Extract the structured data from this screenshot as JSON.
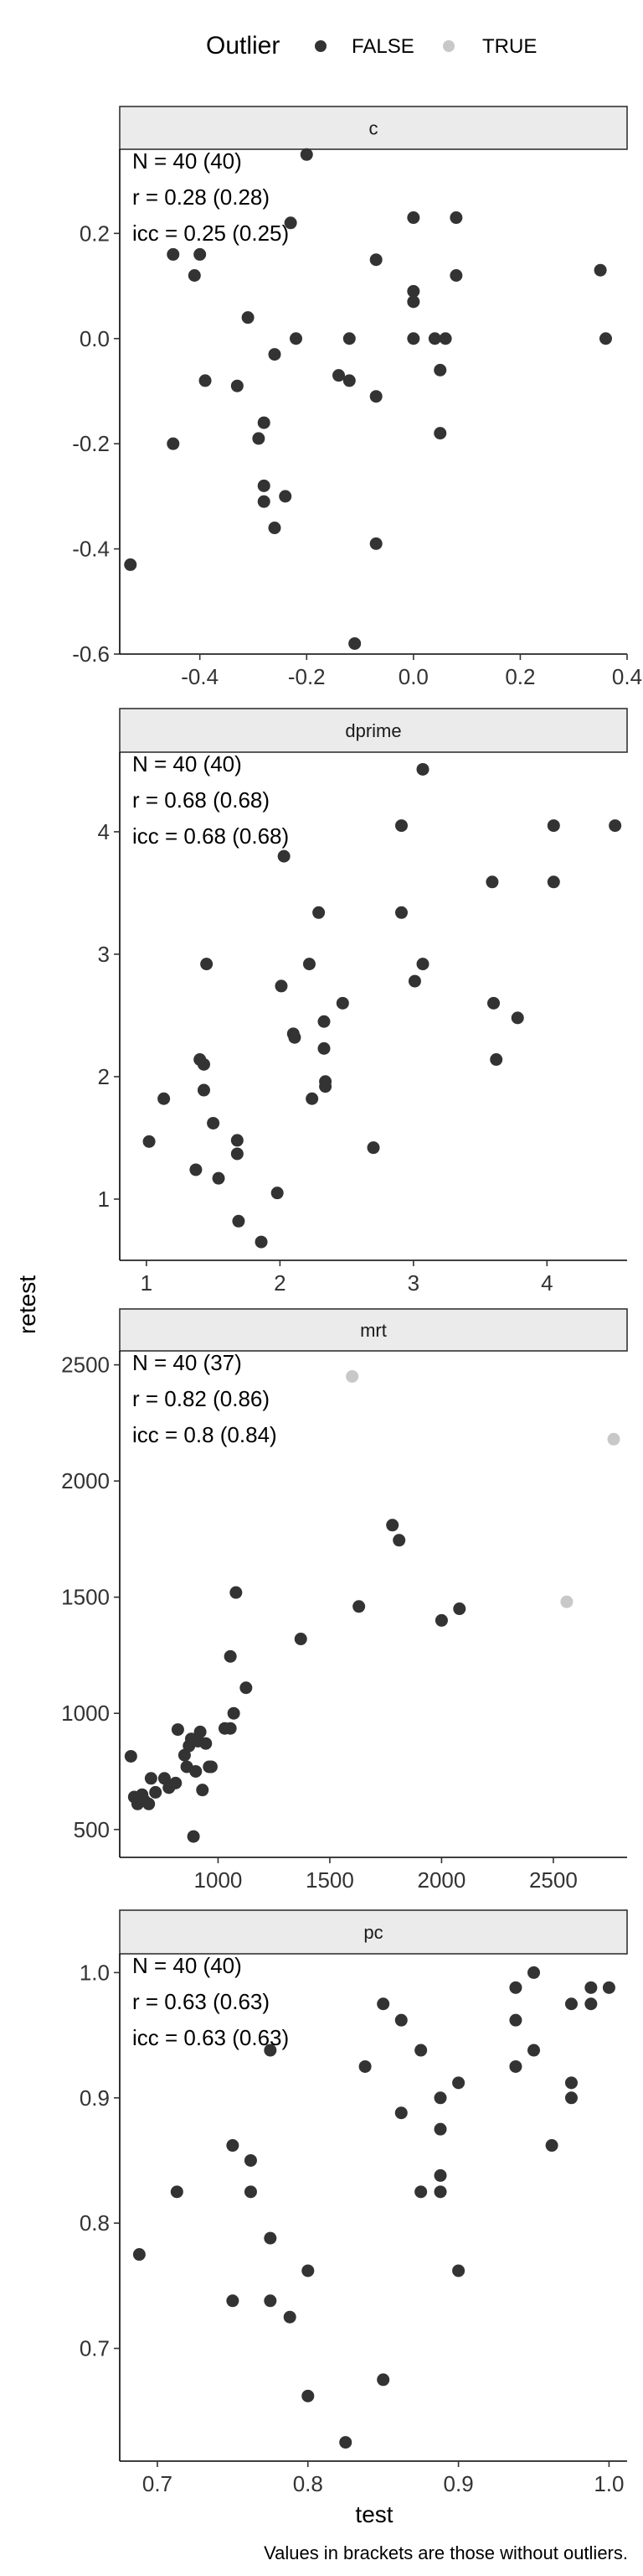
{
  "legend": {
    "title": "Outlier",
    "items": [
      {
        "label": "FALSE",
        "color": "#333333"
      },
      {
        "label": "TRUE",
        "color": "#c8c8c8"
      }
    ]
  },
  "axes": {
    "xlabel": "test",
    "ylabel": "retest"
  },
  "caption": "Values in brackets are those without outliers.",
  "chart_data": [
    {
      "type": "scatter",
      "panel": "c",
      "stats": [
        "N = 40 (40)",
        "r = 0.28 (0.28)",
        "icc = 0.25 (0.25)"
      ],
      "xlim": [
        -0.55,
        0.4
      ],
      "ylim": [
        -0.6,
        0.36
      ],
      "x_ticks": [
        -0.4,
        -0.2,
        0.0,
        0.2,
        0.4
      ],
      "x_tick_labels": [
        "-0.4",
        "-0.2",
        "0.0",
        "0.2",
        "0.4"
      ],
      "y_ticks": [
        -0.6,
        -0.4,
        -0.2,
        0.0,
        0.2
      ],
      "y_tick_labels": [
        "-0.6",
        "-0.4",
        "-0.2",
        "0.0",
        "0.2"
      ],
      "points": [
        {
          "x": -0.53,
          "y": -0.43,
          "outlier": false
        },
        {
          "x": -0.45,
          "y": 0.16,
          "outlier": false
        },
        {
          "x": -0.45,
          "y": -0.2,
          "outlier": false
        },
        {
          "x": -0.41,
          "y": 0.12,
          "outlier": false
        },
        {
          "x": -0.4,
          "y": 0.16,
          "outlier": false
        },
        {
          "x": -0.39,
          "y": -0.08,
          "outlier": false
        },
        {
          "x": -0.33,
          "y": -0.09,
          "outlier": false
        },
        {
          "x": -0.31,
          "y": 0.04,
          "outlier": false
        },
        {
          "x": -0.29,
          "y": -0.19,
          "outlier": false
        },
        {
          "x": -0.28,
          "y": -0.16,
          "outlier": false
        },
        {
          "x": -0.28,
          "y": -0.28,
          "outlier": false
        },
        {
          "x": -0.28,
          "y": -0.31,
          "outlier": false
        },
        {
          "x": -0.26,
          "y": -0.36,
          "outlier": false
        },
        {
          "x": -0.26,
          "y": -0.03,
          "outlier": false
        },
        {
          "x": -0.24,
          "y": -0.3,
          "outlier": false
        },
        {
          "x": -0.23,
          "y": 0.22,
          "outlier": false
        },
        {
          "x": -0.22,
          "y": 0.0,
          "outlier": false
        },
        {
          "x": -0.2,
          "y": 0.35,
          "outlier": false
        },
        {
          "x": -0.14,
          "y": -0.07,
          "outlier": false
        },
        {
          "x": -0.12,
          "y": 0.0,
          "outlier": false
        },
        {
          "x": -0.12,
          "y": -0.08,
          "outlier": false
        },
        {
          "x": -0.11,
          "y": -0.58,
          "outlier": false
        },
        {
          "x": -0.07,
          "y": 0.15,
          "outlier": false
        },
        {
          "x": -0.07,
          "y": -0.11,
          "outlier": false
        },
        {
          "x": -0.07,
          "y": -0.39,
          "outlier": false
        },
        {
          "x": 0.0,
          "y": 0.23,
          "outlier": false
        },
        {
          "x": 0.0,
          "y": 0.09,
          "outlier": false
        },
        {
          "x": 0.0,
          "y": 0.07,
          "outlier": false
        },
        {
          "x": 0.0,
          "y": 0.0,
          "outlier": false
        },
        {
          "x": 0.04,
          "y": 0.0,
          "outlier": false
        },
        {
          "x": 0.05,
          "y": -0.06,
          "outlier": false
        },
        {
          "x": 0.05,
          "y": -0.18,
          "outlier": false
        },
        {
          "x": 0.06,
          "y": 0.0,
          "outlier": false
        },
        {
          "x": 0.08,
          "y": 0.23,
          "outlier": false
        },
        {
          "x": 0.08,
          "y": 0.12,
          "outlier": false
        },
        {
          "x": 0.35,
          "y": 0.13,
          "outlier": false
        },
        {
          "x": 0.36,
          "y": 0.0,
          "outlier": false
        }
      ]
    },
    {
      "type": "scatter",
      "panel": "dprime",
      "stats": [
        "N = 40 (40)",
        "r = 0.68 (0.68)",
        "icc = 0.68 (0.68)"
      ],
      "xlim": [
        0.8,
        4.6
      ],
      "ylim": [
        0.5,
        4.65
      ],
      "x_ticks": [
        1,
        2,
        3,
        4
      ],
      "x_tick_labels": [
        "1",
        "2",
        "3",
        "4"
      ],
      "y_ticks": [
        1,
        2,
        3,
        4
      ],
      "y_tick_labels": [
        "1",
        "2",
        "3",
        "4"
      ],
      "points": [
        {
          "x": 1.02,
          "y": 1.47,
          "outlier": false
        },
        {
          "x": 1.13,
          "y": 1.82,
          "outlier": false
        },
        {
          "x": 1.37,
          "y": 1.24,
          "outlier": false
        },
        {
          "x": 1.4,
          "y": 2.14,
          "outlier": false
        },
        {
          "x": 1.43,
          "y": 2.1,
          "outlier": false
        },
        {
          "x": 1.43,
          "y": 1.89,
          "outlier": false
        },
        {
          "x": 1.45,
          "y": 2.92,
          "outlier": false
        },
        {
          "x": 1.5,
          "y": 1.62,
          "outlier": false
        },
        {
          "x": 1.54,
          "y": 1.17,
          "outlier": false
        },
        {
          "x": 1.68,
          "y": 1.48,
          "outlier": false
        },
        {
          "x": 1.68,
          "y": 1.37,
          "outlier": false
        },
        {
          "x": 1.69,
          "y": 0.82,
          "outlier": false
        },
        {
          "x": 1.86,
          "y": 0.65,
          "outlier": false
        },
        {
          "x": 1.98,
          "y": 1.05,
          "outlier": false
        },
        {
          "x": 2.01,
          "y": 2.74,
          "outlier": false
        },
        {
          "x": 2.03,
          "y": 3.8,
          "outlier": false
        },
        {
          "x": 2.1,
          "y": 2.35,
          "outlier": false
        },
        {
          "x": 2.11,
          "y": 2.32,
          "outlier": false
        },
        {
          "x": 2.22,
          "y": 2.92,
          "outlier": false
        },
        {
          "x": 2.24,
          "y": 1.82,
          "outlier": false
        },
        {
          "x": 2.29,
          "y": 3.34,
          "outlier": false
        },
        {
          "x": 2.33,
          "y": 2.45,
          "outlier": false
        },
        {
          "x": 2.33,
          "y": 2.23,
          "outlier": false
        },
        {
          "x": 2.34,
          "y": 1.96,
          "outlier": false
        },
        {
          "x": 2.34,
          "y": 1.92,
          "outlier": false
        },
        {
          "x": 2.47,
          "y": 2.6,
          "outlier": false
        },
        {
          "x": 2.7,
          "y": 1.42,
          "outlier": false
        },
        {
          "x": 2.91,
          "y": 4.05,
          "outlier": false
        },
        {
          "x": 2.91,
          "y": 3.34,
          "outlier": false
        },
        {
          "x": 3.01,
          "y": 2.78,
          "outlier": false
        },
        {
          "x": 3.07,
          "y": 4.51,
          "outlier": false
        },
        {
          "x": 3.07,
          "y": 2.92,
          "outlier": false
        },
        {
          "x": 3.59,
          "y": 3.59,
          "outlier": false
        },
        {
          "x": 3.6,
          "y": 2.6,
          "outlier": false
        },
        {
          "x": 3.62,
          "y": 2.14,
          "outlier": false
        },
        {
          "x": 3.78,
          "y": 2.48,
          "outlier": false
        },
        {
          "x": 4.05,
          "y": 4.05,
          "outlier": false
        },
        {
          "x": 4.05,
          "y": 3.59,
          "outlier": false
        },
        {
          "x": 4.51,
          "y": 4.05,
          "outlier": false
        }
      ]
    },
    {
      "type": "scatter",
      "panel": "mrt",
      "stats": [
        "N = 40 (37)",
        "r = 0.82 (0.86)",
        "icc = 0.8 (0.84)"
      ],
      "xlim": [
        560,
        2830
      ],
      "ylim": [
        380,
        2560
      ],
      "x_ticks": [
        1000,
        1500,
        2000,
        2500
      ],
      "x_tick_labels": [
        "1000",
        "1500",
        "2000",
        "2500"
      ],
      "y_ticks": [
        500,
        1000,
        1500,
        2000,
        2500
      ],
      "y_tick_labels": [
        "500",
        "1000",
        "1500",
        "2000",
        "2500"
      ],
      "points": [
        {
          "x": 610,
          "y": 815,
          "outlier": false
        },
        {
          "x": 625,
          "y": 640,
          "outlier": false
        },
        {
          "x": 640,
          "y": 610,
          "outlier": false
        },
        {
          "x": 660,
          "y": 650,
          "outlier": false
        },
        {
          "x": 670,
          "y": 625,
          "outlier": false
        },
        {
          "x": 690,
          "y": 610,
          "outlier": false
        },
        {
          "x": 700,
          "y": 720,
          "outlier": false
        },
        {
          "x": 720,
          "y": 660,
          "outlier": false
        },
        {
          "x": 760,
          "y": 720,
          "outlier": false
        },
        {
          "x": 780,
          "y": 680,
          "outlier": false
        },
        {
          "x": 810,
          "y": 700,
          "outlier": false
        },
        {
          "x": 820,
          "y": 930,
          "outlier": false
        },
        {
          "x": 850,
          "y": 820,
          "outlier": false
        },
        {
          "x": 860,
          "y": 770,
          "outlier": false
        },
        {
          "x": 870,
          "y": 860,
          "outlier": false
        },
        {
          "x": 880,
          "y": 890,
          "outlier": false
        },
        {
          "x": 890,
          "y": 470,
          "outlier": false
        },
        {
          "x": 900,
          "y": 750,
          "outlier": false
        },
        {
          "x": 910,
          "y": 880,
          "outlier": false
        },
        {
          "x": 920,
          "y": 920,
          "outlier": false
        },
        {
          "x": 930,
          "y": 670,
          "outlier": false
        },
        {
          "x": 945,
          "y": 870,
          "outlier": false
        },
        {
          "x": 960,
          "y": 770,
          "outlier": false
        },
        {
          "x": 970,
          "y": 770,
          "outlier": false
        },
        {
          "x": 1030,
          "y": 935,
          "outlier": false
        },
        {
          "x": 1055,
          "y": 935,
          "outlier": false
        },
        {
          "x": 1055,
          "y": 1245,
          "outlier": false
        },
        {
          "x": 1070,
          "y": 1000,
          "outlier": false
        },
        {
          "x": 1080,
          "y": 1520,
          "outlier": false
        },
        {
          "x": 1125,
          "y": 1110,
          "outlier": false
        },
        {
          "x": 1370,
          "y": 1320,
          "outlier": false
        },
        {
          "x": 1600,
          "y": 2450,
          "outlier": true
        },
        {
          "x": 1630,
          "y": 1460,
          "outlier": false
        },
        {
          "x": 1780,
          "y": 1810,
          "outlier": false
        },
        {
          "x": 1810,
          "y": 1745,
          "outlier": false
        },
        {
          "x": 2000,
          "y": 1400,
          "outlier": false
        },
        {
          "x": 2080,
          "y": 1450,
          "outlier": false
        },
        {
          "x": 2560,
          "y": 1480,
          "outlier": true
        },
        {
          "x": 2770,
          "y": 2180,
          "outlier": true
        }
      ]
    },
    {
      "type": "scatter",
      "panel": "pc",
      "stats": [
        "N = 40 (40)",
        "r = 0.63 (0.63)",
        "icc = 0.63 (0.63)"
      ],
      "xlim": [
        0.675,
        1.012
      ],
      "ylim": [
        0.61,
        1.015
      ],
      "x_ticks": [
        0.7,
        0.8,
        0.9,
        1.0
      ],
      "x_tick_labels": [
        "0.7",
        "0.8",
        "0.9",
        "1.0"
      ],
      "y_ticks": [
        0.7,
        0.8,
        0.9,
        1.0
      ],
      "y_tick_labels": [
        "0.7",
        "0.8",
        "0.9",
        "1.0"
      ],
      "points": [
        {
          "x": 0.688,
          "y": 0.775,
          "outlier": false
        },
        {
          "x": 0.713,
          "y": 0.825,
          "outlier": false
        },
        {
          "x": 0.75,
          "y": 0.862,
          "outlier": false
        },
        {
          "x": 0.75,
          "y": 0.738,
          "outlier": false
        },
        {
          "x": 0.762,
          "y": 0.85,
          "outlier": false
        },
        {
          "x": 0.762,
          "y": 0.825,
          "outlier": false
        },
        {
          "x": 0.775,
          "y": 0.938,
          "outlier": false
        },
        {
          "x": 0.775,
          "y": 0.788,
          "outlier": false
        },
        {
          "x": 0.775,
          "y": 0.738,
          "outlier": false
        },
        {
          "x": 0.788,
          "y": 0.725,
          "outlier": false
        },
        {
          "x": 0.8,
          "y": 0.762,
          "outlier": false
        },
        {
          "x": 0.8,
          "y": 0.662,
          "outlier": false
        },
        {
          "x": 0.825,
          "y": 0.625,
          "outlier": false
        },
        {
          "x": 0.838,
          "y": 0.925,
          "outlier": false
        },
        {
          "x": 0.85,
          "y": 0.975,
          "outlier": false
        },
        {
          "x": 0.85,
          "y": 0.675,
          "outlier": false
        },
        {
          "x": 0.862,
          "y": 0.962,
          "outlier": false
        },
        {
          "x": 0.862,
          "y": 0.888,
          "outlier": false
        },
        {
          "x": 0.875,
          "y": 0.938,
          "outlier": false
        },
        {
          "x": 0.875,
          "y": 0.825,
          "outlier": false
        },
        {
          "x": 0.888,
          "y": 0.9,
          "outlier": false
        },
        {
          "x": 0.888,
          "y": 0.875,
          "outlier": false
        },
        {
          "x": 0.888,
          "y": 0.838,
          "outlier": false
        },
        {
          "x": 0.888,
          "y": 0.825,
          "outlier": false
        },
        {
          "x": 0.9,
          "y": 0.912,
          "outlier": false
        },
        {
          "x": 0.9,
          "y": 0.762,
          "outlier": false
        },
        {
          "x": 0.938,
          "y": 0.988,
          "outlier": false
        },
        {
          "x": 0.938,
          "y": 0.962,
          "outlier": false
        },
        {
          "x": 0.938,
          "y": 0.925,
          "outlier": false
        },
        {
          "x": 0.95,
          "y": 1.0,
          "outlier": false
        },
        {
          "x": 0.95,
          "y": 0.938,
          "outlier": false
        },
        {
          "x": 0.962,
          "y": 0.862,
          "outlier": false
        },
        {
          "x": 0.975,
          "y": 0.975,
          "outlier": false
        },
        {
          "x": 0.975,
          "y": 0.912,
          "outlier": false
        },
        {
          "x": 0.975,
          "y": 0.9,
          "outlier": false
        },
        {
          "x": 0.988,
          "y": 0.988,
          "outlier": false
        },
        {
          "x": 0.988,
          "y": 0.975,
          "outlier": false
        },
        {
          "x": 1.0,
          "y": 0.988,
          "outlier": false
        }
      ]
    }
  ]
}
